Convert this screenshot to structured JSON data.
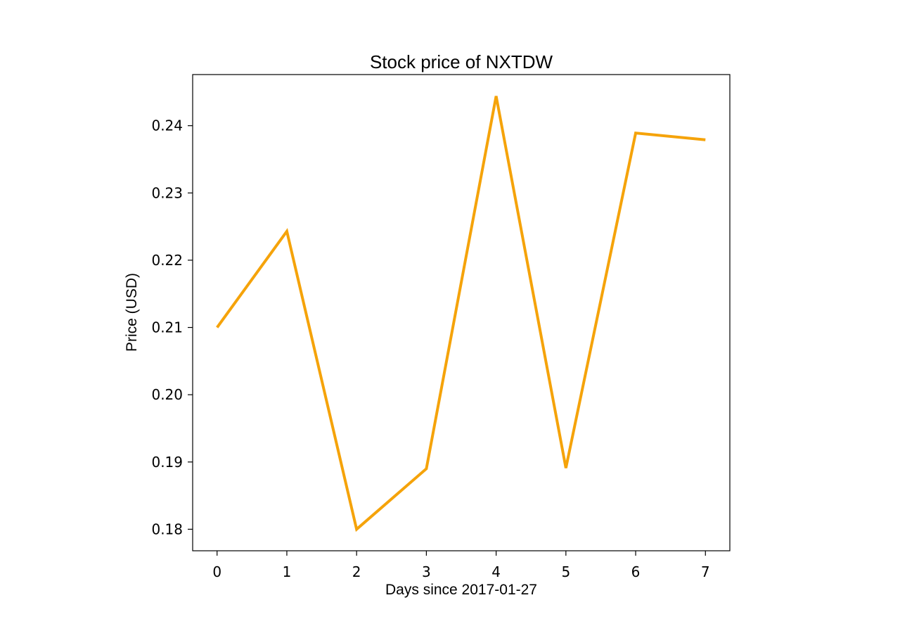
{
  "chart_data": {
    "type": "line",
    "title": "Stock price of NXTDW",
    "xlabel": "Days since 2017-01-27",
    "ylabel": "Price (USD)",
    "x": [
      0,
      1,
      2,
      3,
      4,
      5,
      6,
      7
    ],
    "series": [
      {
        "values": [
          0.21,
          0.2243,
          0.18,
          0.189,
          0.2444,
          0.1891,
          0.2389,
          0.2379
        ],
        "color": "#f5a30a"
      }
    ],
    "xticks": [
      "0",
      "1",
      "2",
      "3",
      "4",
      "5",
      "6",
      "7"
    ],
    "yticks": [
      "0.18",
      "0.19",
      "0.20",
      "0.21",
      "0.22",
      "0.23",
      "0.24"
    ],
    "xlim": [
      -0.35,
      7.35
    ],
    "ylim": [
      0.1768,
      0.2476
    ],
    "grid": false,
    "legend": "none"
  }
}
